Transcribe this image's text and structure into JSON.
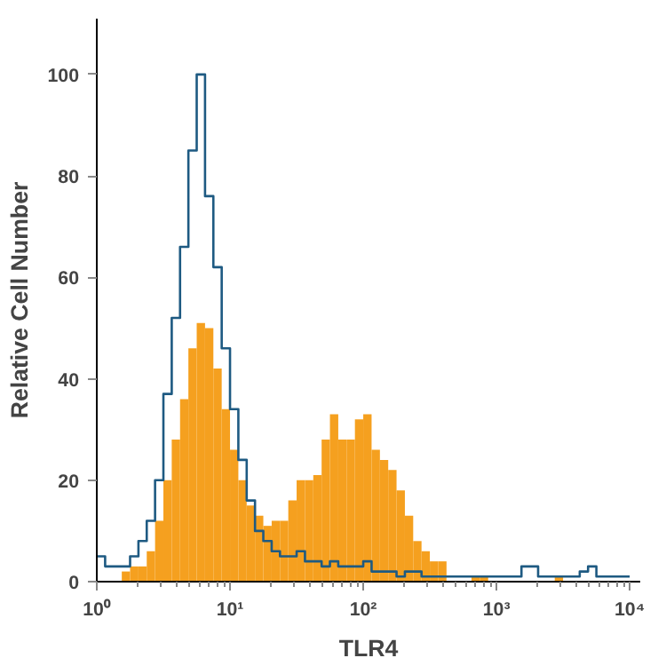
{
  "chart_data": {
    "type": "histogram",
    "xlabel": "TLR4",
    "ylabel": "Relative Cell Number",
    "log": "x",
    "grid": false,
    "xlim": [
      1,
      12000
    ],
    "ylim": [
      0,
      111
    ],
    "xticks": [
      {
        "value": 1,
        "label": "10⁰"
      },
      {
        "value": 10,
        "label": "10¹"
      },
      {
        "value": 100,
        "label": "10²"
      },
      {
        "value": 1000,
        "label": "10³"
      },
      {
        "value": 10000,
        "label": "10⁴"
      }
    ],
    "yticks": [
      0,
      20,
      40,
      60,
      80,
      100
    ],
    "bins": [
      1,
      1.155,
      1.334,
      1.54,
      1.778,
      2.054,
      2.371,
      2.738,
      3.162,
      3.652,
      4.217,
      4.87,
      5.623,
      6.494,
      7.499,
      8.66,
      10,
      11.55,
      13.34,
      15.4,
      17.78,
      20.54,
      23.71,
      27.38,
      31.62,
      36.52,
      42.17,
      48.7,
      56.23,
      64.94,
      74.99,
      86.6,
      100,
      115.5,
      133.4,
      154,
      177.8,
      205.4,
      237.1,
      273.8,
      316.2,
      365.2,
      421.7,
      487,
      562.3,
      649.4,
      749.9,
      866,
      1000,
      1155,
      1334,
      1540,
      1778,
      2054,
      2371,
      2738,
      3162,
      3652,
      4217,
      4870,
      5623,
      6494,
      7499,
      8660,
      10000
    ],
    "series": [
      {
        "color": "#f5a01f",
        "values": [
          0,
          0,
          0,
          2,
          3,
          3,
          6,
          12,
          20,
          28,
          36,
          46,
          51,
          50,
          42,
          34,
          26,
          20,
          15,
          13,
          11,
          12,
          12,
          16,
          20,
          20,
          21,
          28,
          33,
          28,
          28,
          32,
          33,
          26,
          24,
          22,
          18,
          13,
          8,
          6,
          4,
          4,
          0,
          0,
          0,
          1,
          1,
          0,
          0,
          0,
          0,
          0,
          0,
          0,
          0,
          1,
          0,
          0,
          0,
          0,
          0,
          0,
          0,
          0
        ]
      },
      {
        "type": "step",
        "color": "#1e5a82",
        "x": [
          1,
          1.155,
          1.334,
          1.54,
          1.778,
          2.054,
          2.371,
          2.738,
          3.162,
          3.652,
          4.217,
          4.87,
          5.623,
          6.494,
          7.499,
          8.66,
          10,
          11.55,
          13.34,
          15.4,
          17.78,
          20.54,
          23.71,
          27.38,
          31.62,
          36.52,
          42.17,
          48.7,
          56.23,
          64.94,
          74.99,
          86.6,
          100,
          115.5,
          133.4,
          154,
          177.8,
          205.4,
          237.1,
          273.8,
          316.2,
          365.2,
          421.7,
          487,
          562.3,
          649.4,
          749.9,
          866,
          1000,
          1155,
          1334,
          1540,
          1778,
          2054,
          2371,
          2738,
          3162,
          3652,
          4217,
          4870,
          5623,
          6494,
          7499,
          8660,
          10000
        ],
        "values": [
          5,
          3,
          3,
          3,
          5,
          8,
          12,
          20,
          37,
          52,
          66,
          85,
          100,
          76,
          62,
          46,
          34,
          24,
          16,
          10,
          8,
          6,
          5,
          5,
          6,
          4,
          4,
          3,
          4,
          3,
          3,
          3,
          4,
          2,
          2,
          2,
          1,
          2,
          2,
          1,
          1,
          1,
          1,
          1,
          1,
          1,
          1,
          1,
          1,
          1,
          1,
          3,
          3,
          1,
          1,
          1,
          1,
          1,
          2,
          3,
          1,
          1,
          1,
          1,
          1
        ]
      }
    ]
  }
}
